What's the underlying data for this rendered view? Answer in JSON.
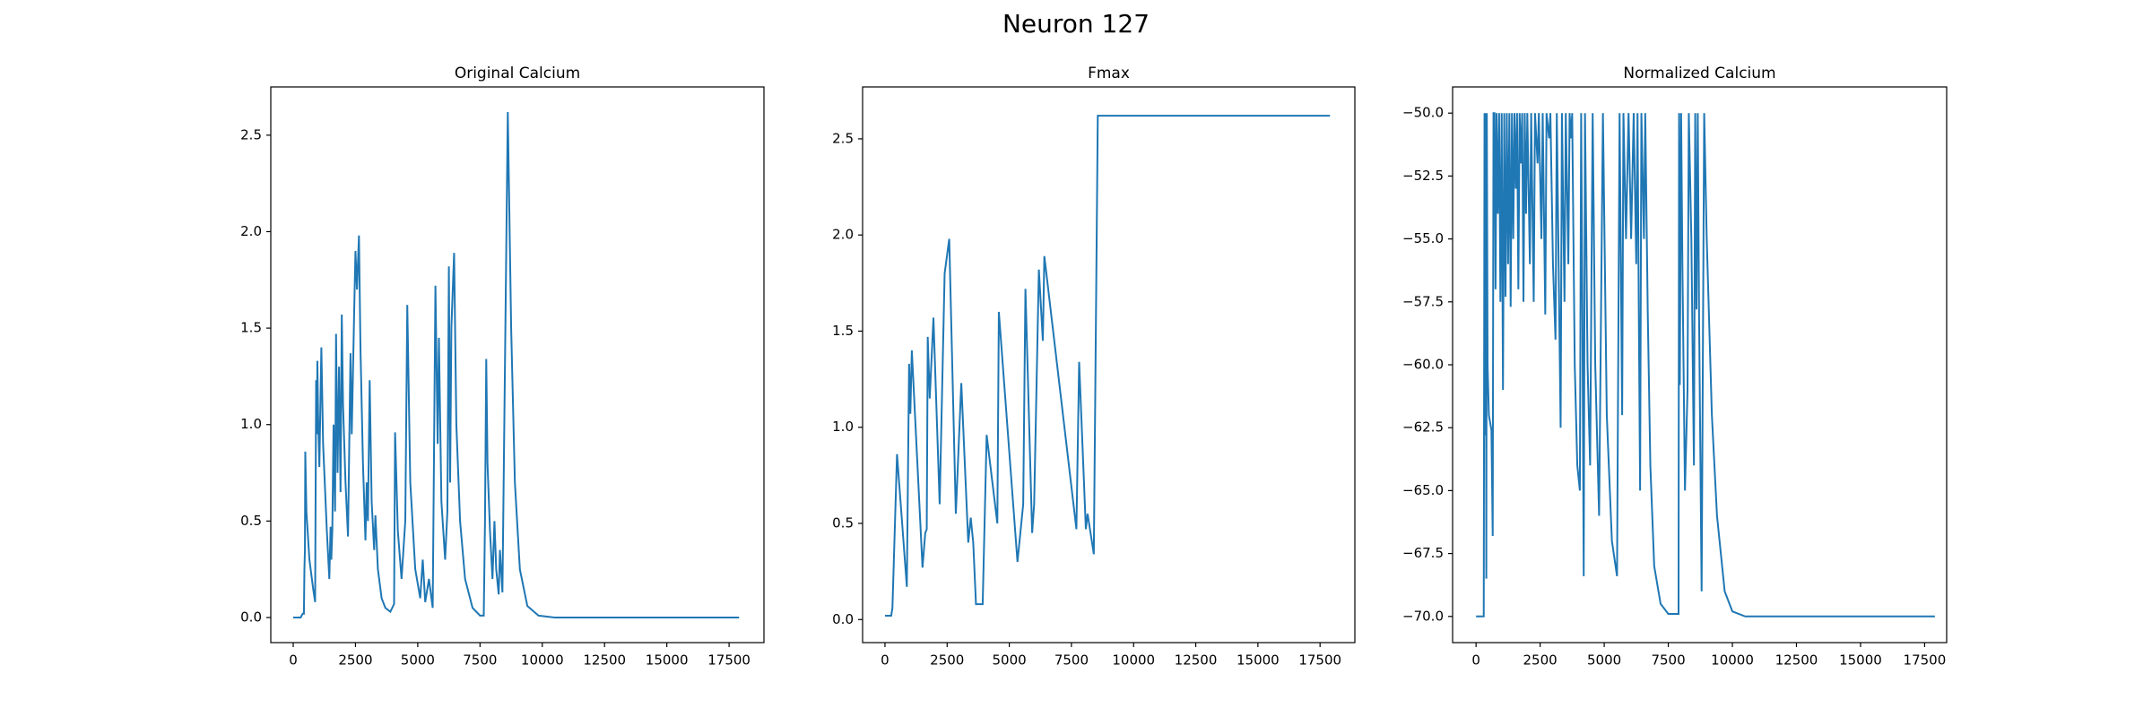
{
  "title": "Neuron 127",
  "chart_data": [
    {
      "type": "line",
      "title": "Original Calcium",
      "color": "#1f77b4",
      "x": [
        0,
        300,
        380,
        430,
        450,
        470,
        485,
        530,
        650,
        800,
        880,
        920,
        950,
        970,
        1000,
        1050,
        1130,
        1200,
        1350,
        1450,
        1500,
        1530,
        1570,
        1620,
        1680,
        1720,
        1780,
        1840,
        1900,
        1950,
        2000,
        2100,
        2200,
        2300,
        2350,
        2450,
        2500,
        2560,
        2640,
        2700,
        2800,
        2900,
        2950,
        3000,
        3070,
        3150,
        3250,
        3300,
        3400,
        3550,
        3700,
        3900,
        4050,
        4090,
        4200,
        4350,
        4500,
        4580,
        4700,
        4900,
        5100,
        5200,
        5300,
        5450,
        5600,
        5650,
        5710,
        5800,
        5850,
        5950,
        6100,
        6190,
        6250,
        6300,
        6350,
        6460,
        6550,
        6700,
        6900,
        7200,
        7500,
        7650,
        7700,
        7750,
        7800,
        7900,
        8000,
        8080,
        8150,
        8250,
        8300,
        8400,
        8615,
        8750,
        8900,
        9100,
        9400,
        9850,
        10500,
        17900
      ],
      "values": [
        0,
        0,
        0.02,
        0.02,
        0.25,
        0.35,
        0.86,
        0.55,
        0.3,
        0.15,
        0.08,
        1.23,
        0.95,
        1.33,
        1.05,
        0.78,
        1.4,
        0.9,
        0.45,
        0.2,
        0.47,
        0.3,
        0.45,
        1.0,
        0.55,
        1.47,
        0.75,
        1.3,
        0.65,
        1.57,
        1.1,
        0.7,
        0.42,
        1.37,
        0.95,
        1.6,
        1.9,
        1.7,
        1.98,
        1.4,
        0.8,
        0.4,
        0.7,
        0.5,
        1.23,
        0.6,
        0.35,
        0.53,
        0.25,
        0.1,
        0.05,
        0.03,
        0.07,
        0.96,
        0.45,
        0.2,
        0.5,
        1.62,
        0.7,
        0.25,
        0.1,
        0.3,
        0.08,
        0.2,
        0.05,
        0.8,
        1.72,
        0.9,
        1.45,
        0.6,
        0.3,
        0.55,
        1.82,
        0.7,
        1.5,
        1.89,
        1.0,
        0.5,
        0.2,
        0.05,
        0.01,
        0.01,
        0.5,
        1.34,
        0.8,
        0.45,
        0.2,
        0.5,
        0.25,
        0.12,
        0.35,
        0.13,
        2.62,
        1.5,
        0.7,
        0.25,
        0.06,
        0.01,
        0,
        0
      ],
      "xlim": [
        -900,
        18900
      ],
      "ylim": [
        -0.13,
        2.75
      ],
      "xticks": [
        0,
        2500,
        5000,
        7500,
        10000,
        12500,
        15000,
        17500
      ],
      "yticks": [
        {
          "value": 0,
          "label": "0.0"
        },
        0.5,
        {
          "value": 1,
          "label": "1.0"
        },
        1.5,
        {
          "value": 2,
          "label": "2.0"
        },
        2.5
      ]
    },
    {
      "type": "line",
      "title": "Fmax",
      "color": "#1f77b4",
      "x": [
        0,
        250,
        300,
        485,
        880,
        970,
        1020,
        1080,
        1510,
        1620,
        1680,
        1720,
        1800,
        1950,
        2200,
        2400,
        2585,
        2850,
        3070,
        3350,
        3450,
        3550,
        3660,
        3930,
        4090,
        4520,
        4580,
        5330,
        5560,
        5650,
        5920,
        6000,
        6190,
        6350,
        6410,
        7700,
        7810,
        8080,
        8150,
        8400,
        8560,
        17900
      ],
      "values": [
        0.02,
        0.02,
        0.06,
        0.86,
        0.17,
        1.33,
        1.07,
        1.4,
        0.27,
        0.45,
        0.47,
        1.47,
        1.15,
        1.57,
        0.6,
        1.8,
        1.98,
        0.55,
        1.23,
        0.4,
        0.53,
        0.4,
        0.08,
        0.08,
        0.96,
        0.5,
        1.6,
        0.3,
        0.6,
        1.72,
        0.45,
        0.6,
        1.82,
        1.45,
        1.89,
        0.47,
        1.34,
        0.47,
        0.55,
        0.34,
        2.62,
        2.62
      ],
      "xlim": [
        -900,
        18900
      ],
      "ylim": [
        -0.12,
        2.77
      ],
      "xticks": [
        0,
        2500,
        5000,
        7500,
        10000,
        12500,
        15000,
        17500
      ],
      "yticks": [
        {
          "value": 0,
          "label": "0.0"
        },
        0.5,
        {
          "value": 1,
          "label": "1.0"
        },
        1.5,
        {
          "value": 2,
          "label": "2.0"
        },
        2.5
      ]
    },
    {
      "type": "line",
      "title": "Normalized Calcium",
      "color": "#1f77b4",
      "x": [
        0,
        300,
        330,
        360,
        380,
        400,
        420,
        450,
        500,
        600,
        650,
        680,
        720,
        760,
        800,
        850,
        900,
        950,
        1000,
        1050,
        1100,
        1150,
        1200,
        1250,
        1300,
        1350,
        1400,
        1450,
        1500,
        1550,
        1600,
        1650,
        1700,
        1750,
        1800,
        1850,
        1900,
        1950,
        2000,
        2100,
        2150,
        2250,
        2300,
        2400,
        2450,
        2550,
        2600,
        2700,
        2750,
        2850,
        2900,
        3000,
        3100,
        3150,
        3300,
        3350,
        3450,
        3500,
        3600,
        3650,
        3700,
        3750,
        3850,
        3950,
        4050,
        4100,
        4150,
        4200,
        4250,
        4350,
        4450,
        4550,
        4650,
        4800,
        4950,
        5100,
        5300,
        5500,
        5600,
        5700,
        5750,
        5850,
        5950,
        6050,
        6150,
        6250,
        6300,
        6350,
        6400,
        6450,
        6550,
        6600,
        6700,
        6800,
        6950,
        7200,
        7500,
        7900,
        7920,
        7950,
        8000,
        8050,
        8150,
        8250,
        8300,
        8400,
        8500,
        8550,
        8600,
        8650,
        8700,
        8800,
        8900,
        9000,
        9200,
        9400,
        9700,
        10000,
        10500,
        17900
      ],
      "values": [
        -70,
        -70,
        -50,
        -62.8,
        -50,
        -68.5,
        -50,
        -60,
        -62,
        -62.6,
        -66.8,
        -50,
        -50,
        -57,
        -50,
        -54,
        -50,
        -57.5,
        -50,
        -61,
        -50,
        -57.3,
        -50,
        -56,
        -50,
        -57.7,
        -50,
        -55,
        -50,
        -53,
        -50,
        -57,
        -50,
        -52,
        -50,
        -57.5,
        -50,
        -54,
        -50,
        -56,
        -50,
        -57.5,
        -50,
        -52,
        -50,
        -55,
        -50,
        -58,
        -50,
        -51,
        -50,
        -56,
        -59,
        -50,
        -62.5,
        -50,
        -57.5,
        -50,
        -56,
        -50,
        -51,
        -50,
        -60,
        -64,
        -65,
        -50,
        -58,
        -68.4,
        -50,
        -60,
        -64,
        -50,
        -60,
        -66,
        -50,
        -62,
        -67,
        -68.4,
        -50,
        -62,
        -50,
        -55,
        -50,
        -55,
        -50,
        -56,
        -50,
        -58,
        -65,
        -50,
        -55,
        -50,
        -58,
        -64,
        -68,
        -69.5,
        -69.9,
        -69.9,
        -50,
        -60.8,
        -50,
        -56,
        -65,
        -61,
        -50,
        -55,
        -64,
        -50,
        -57.8,
        -50,
        -58,
        -69,
        -50,
        -55,
        -62,
        -66,
        -69,
        -69.8,
        -70,
        -70
      ],
      "xlim": [
        -915,
        18360
      ],
      "ylim": [
        -71.04,
        -48.96
      ],
      "xticks": [
        0,
        2500,
        5000,
        7500,
        10000,
        12500,
        15000,
        17500
      ],
      "yticks": [
        {
          "value": -70,
          "label": "−70.0"
        },
        {
          "value": -67.5,
          "label": "−67.5"
        },
        {
          "value": -65,
          "label": "−65.0"
        },
        {
          "value": -62.5,
          "label": "−62.5"
        },
        {
          "value": -60,
          "label": "−60.0"
        },
        {
          "value": -57.5,
          "label": "−57.5"
        },
        {
          "value": -55,
          "label": "−55.0"
        },
        {
          "value": -52.5,
          "label": "−52.5"
        },
        {
          "value": -50,
          "label": "−50.0"
        }
      ]
    }
  ]
}
